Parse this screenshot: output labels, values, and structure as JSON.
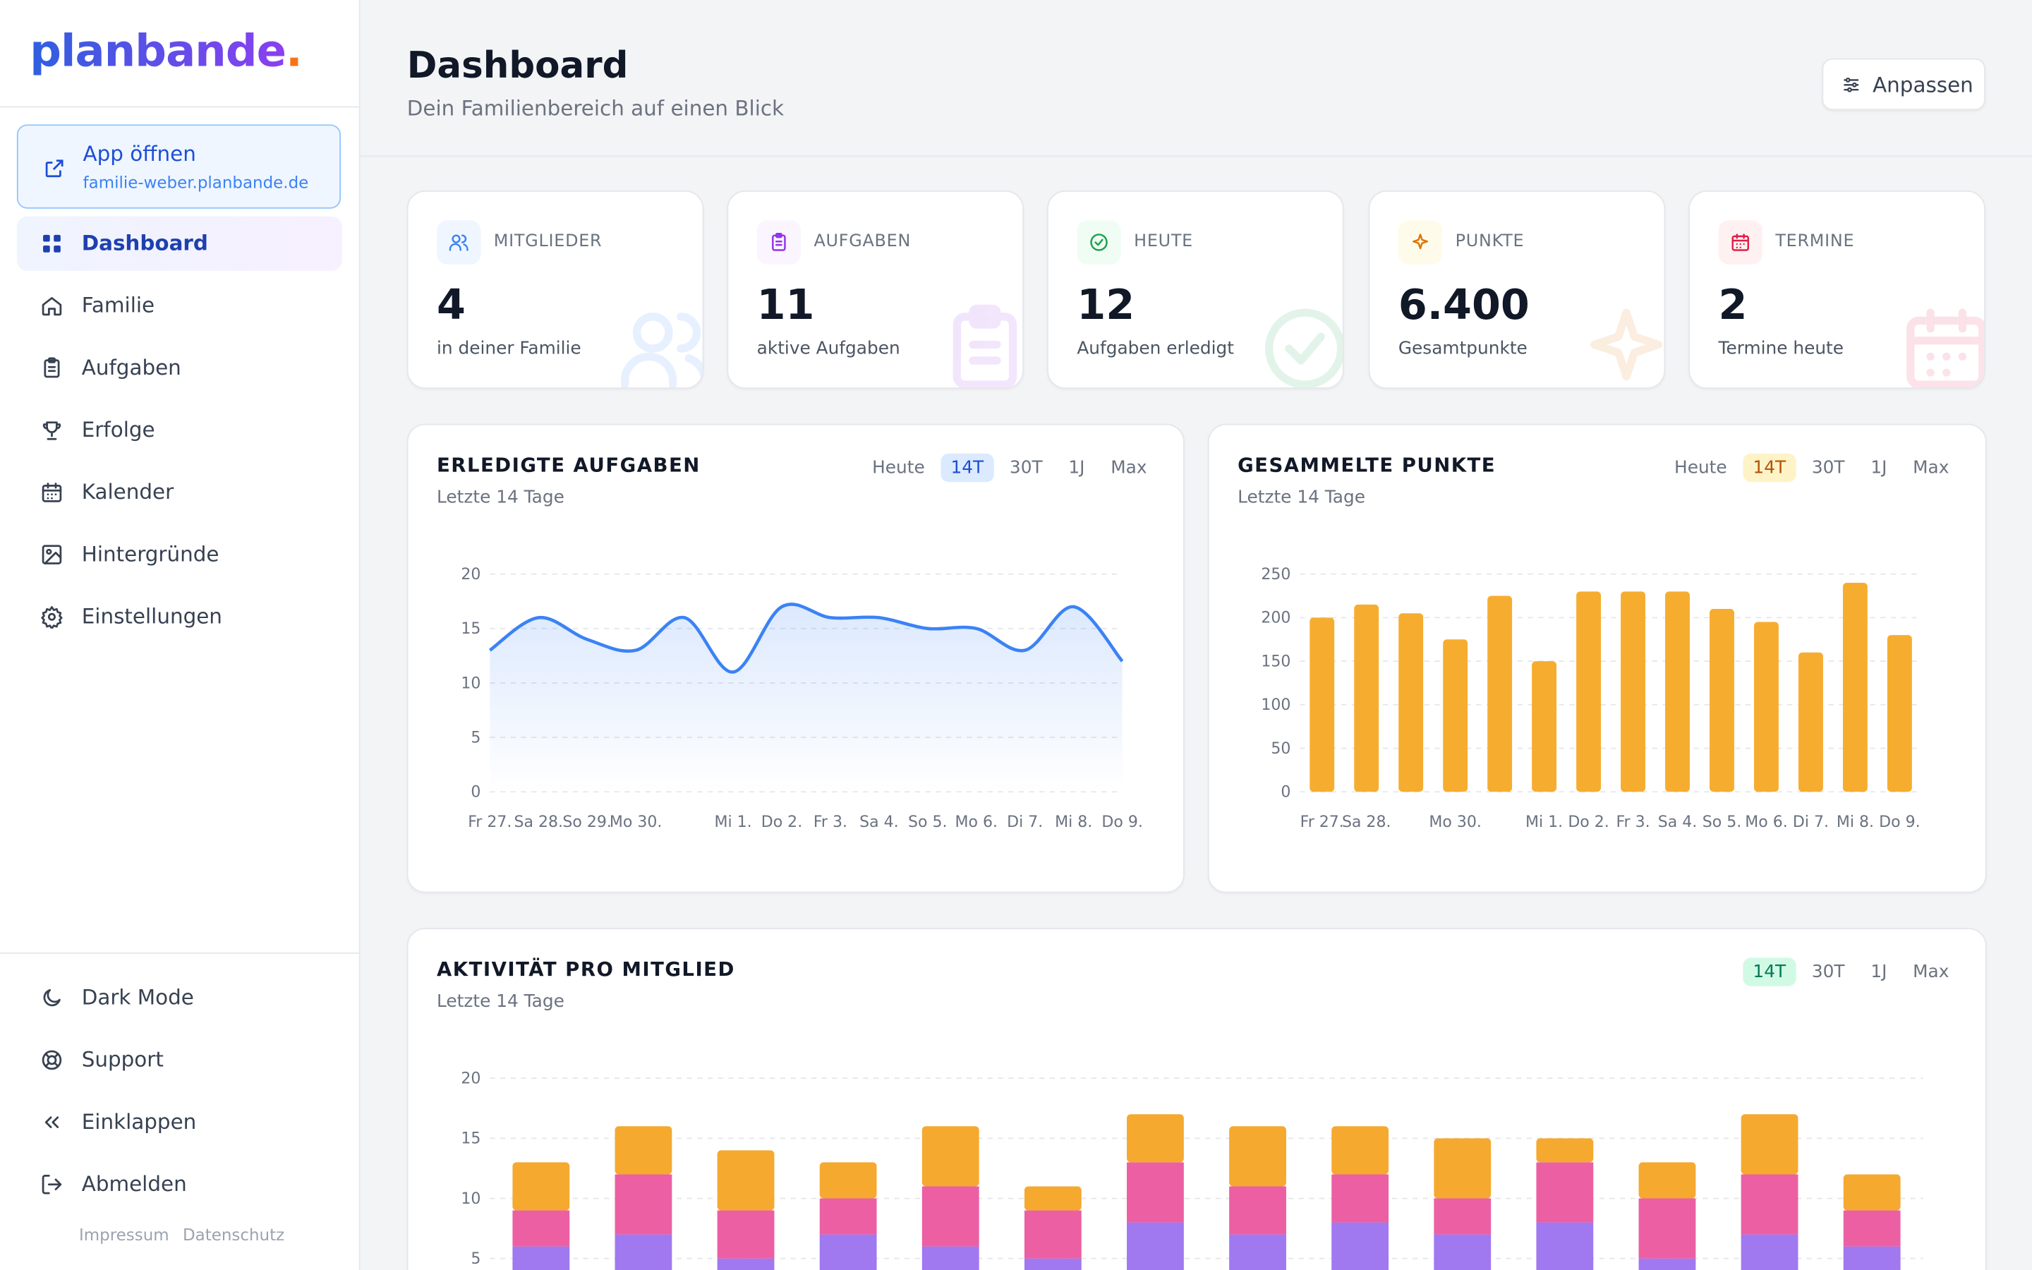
{
  "sidebar": {
    "logo": "planbande",
    "logo_dot": ".",
    "app_link": {
      "title": "App öffnen",
      "url": "familie-weber.planbande.de"
    },
    "nav": [
      "Dashboard",
      "Familie",
      "Aufgaben",
      "Erfolge",
      "Kalender",
      "Hintergründe",
      "Einstellungen"
    ],
    "bottom_nav": [
      "Dark Mode",
      "Support",
      "Einklappen",
      "Abmelden"
    ],
    "footer_links": [
      "Impressum",
      "Datenschutz"
    ]
  },
  "header": {
    "title": "Dashboard",
    "subtitle": "Dein Familienbereich auf einen Blick",
    "button": "Anpassen"
  },
  "stats": [
    {
      "label": "MITGLIEDER",
      "value": "4",
      "caption": "in deiner Familie"
    },
    {
      "label": "AUFGABEN",
      "value": "11",
      "caption": "aktive Aufgaben"
    },
    {
      "label": "HEUTE",
      "value": "12",
      "caption": "Aufgaben erledigt"
    },
    {
      "label": "PUNKTE",
      "value": "6.400",
      "caption": "Gesamtpunkte"
    },
    {
      "label": "TERMINE",
      "value": "2",
      "caption": "Termine heute"
    }
  ],
  "chart_data": [
    {
      "type": "line",
      "title": "ERLEDIGTE AUFGABEN",
      "subtitle": "Letzte 14 Tage",
      "ranges": [
        "Heute",
        "14T",
        "30T",
        "1J",
        "Max"
      ],
      "active_range": 1,
      "categories": [
        "Fr 27.",
        "Sa 28.",
        "So 29.",
        "Mo 30.",
        null,
        "Mi 1.",
        "Do 2.",
        "Fr 3.",
        "Sa 4.",
        "So 5.",
        "Mo 6.",
        "Di 7.",
        "Mi 8.",
        "Do 9."
      ],
      "values": [
        13,
        16,
        14,
        13,
        16,
        11,
        17,
        16,
        16,
        15,
        15,
        13,
        17,
        12
      ],
      "color": "#3b82f6",
      "ylim": [
        0,
        20
      ],
      "yticks": [
        0,
        5,
        10,
        15,
        20
      ],
      "grid": true
    },
    {
      "type": "bar",
      "title": "GESAMMELTE PUNKTE",
      "subtitle": "Letzte 14 Tage",
      "ranges": [
        "Heute",
        "14T",
        "30T",
        "1J",
        "Max"
      ],
      "active_range": 1,
      "categories": [
        "Fr 27.",
        "Sa 28.",
        null,
        "Mo 30.",
        null,
        "Mi 1.",
        "Do 2.",
        "Fr 3.",
        "Sa 4.",
        "So 5.",
        "Mo 6.",
        "Di 7.",
        "Mi 8.",
        "Do 9."
      ],
      "values": [
        200,
        215,
        205,
        175,
        225,
        150,
        230,
        230,
        230,
        210,
        195,
        160,
        240,
        180
      ],
      "color": "#f6ad2f",
      "ylim": [
        0,
        250
      ],
      "yticks": [
        0,
        50,
        100,
        150,
        200,
        250
      ],
      "grid": true
    },
    {
      "type": "stacked_bar",
      "title": "AKTIVITÄT PRO MITGLIED",
      "subtitle": "Letzte 14 Tage",
      "ranges": [
        "14T",
        "30T",
        "1J",
        "Max"
      ],
      "active_range": 0,
      "series": [
        {
          "color": "#a078f0",
          "values": [
            6,
            7,
            5,
            7,
            6,
            5,
            8,
            7,
            8,
            7,
            8,
            5,
            7,
            6
          ]
        },
        {
          "color": "#ec5fa3",
          "values": [
            3,
            5,
            4,
            3,
            5,
            4,
            5,
            4,
            4,
            3,
            5,
            5,
            5,
            3
          ]
        },
        {
          "color": "#f5a92f",
          "values": [
            4,
            4,
            5,
            3,
            5,
            2,
            4,
            5,
            4,
            5,
            2,
            3,
            5,
            3
          ]
        }
      ],
      "ylim": [
        0,
        20
      ],
      "yticks": [
        5,
        10,
        15,
        20
      ],
      "grid": true
    }
  ]
}
